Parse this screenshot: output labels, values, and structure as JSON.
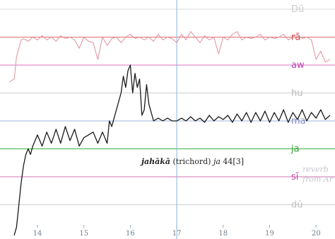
{
  "chart_data": {
    "type": "line",
    "x_ticks": [
      14,
      15,
      16,
      17,
      18,
      19,
      20
    ],
    "xlim": [
      13.4,
      20.3
    ],
    "svara_lines": [
      {
        "label": "Dū",
        "level": 2,
        "color": "#d9d9d9",
        "label_color": "#cccccc"
      },
      {
        "label": "rā",
        "level": 1,
        "color": "#e07070",
        "label_color": "#d04040"
      },
      {
        "label": "aw",
        "level": 0,
        "color": "#e070c0",
        "label_color": "#c040b0"
      },
      {
        "label": "hu",
        "level": -1,
        "color": "#cfcfcf",
        "label_color": "#b8b8b8"
      },
      {
        "label": "ma",
        "level": -2,
        "color": "#a0b0d8",
        "label_color": "#8090c8"
      },
      {
        "label": "ja",
        "level": -3,
        "color": "#40b040",
        "label_color": "#30a030"
      },
      {
        "label": "sī",
        "level": -4,
        "color": "#d070b0",
        "label_color": "#c040a0"
      },
      {
        "label": "dū",
        "level": -5,
        "color": "#d0d0d0",
        "label_color": "#c0c0c0"
      }
    ],
    "cursor_x": 17.0,
    "annotation": {
      "word": "jahākā",
      "middle": " (trichord) ",
      "word2": "ja",
      "suffix": " 44[3]"
    },
    "faint_text": [
      "reverb",
      "from Ar"
    ],
    "series": [
      {
        "color": "#e0909a",
        "x": [
          13.4,
          13.5,
          13.55,
          13.65,
          13.7,
          13.8,
          13.9,
          14.0,
          14.1,
          14.2,
          14.3,
          14.4,
          14.5,
          14.6,
          14.7,
          14.8,
          14.9,
          15.0,
          15.1,
          15.2,
          15.3,
          15.4,
          15.5,
          15.6,
          15.7,
          15.8,
          15.9,
          16.0,
          16.1,
          16.2,
          16.3,
          16.4,
          16.5,
          16.6,
          16.7,
          16.8,
          16.9,
          17.0,
          17.1,
          17.2,
          17.3,
          17.4,
          17.5,
          17.6,
          17.7,
          17.8,
          17.9,
          18.0,
          18.1,
          18.2,
          18.3,
          18.4,
          18.5,
          18.6,
          18.7,
          18.8,
          18.9,
          19.0,
          19.1,
          19.2,
          19.3,
          19.4,
          19.5,
          19.6,
          19.7,
          19.8,
          19.9,
          20.0,
          20.1,
          20.2,
          20.3
        ],
        "y": [
          -0.6,
          -0.5,
          0.3,
          0.9,
          0.95,
          0.85,
          1.0,
          0.9,
          1.05,
          0.9,
          1.0,
          0.85,
          1.05,
          0.95,
          1.0,
          0.9,
          0.6,
          1.0,
          0.85,
          0.8,
          0.2,
          1.0,
          0.7,
          0.95,
          1.0,
          0.8,
          1.0,
          1.1,
          0.95,
          1.0,
          0.9,
          1.0,
          0.85,
          1.1,
          0.9,
          1.0,
          0.95,
          0.8,
          1.1,
          0.9,
          1.2,
          1.0,
          0.8,
          1.05,
          0.9,
          1.0,
          0.4,
          1.0,
          0.9,
          1.1,
          1.2,
          0.9,
          1.0,
          0.95,
          1.0,
          1.1,
          0.9,
          1.0,
          0.95,
          1.0,
          1.1,
          0.9,
          1.0,
          1.1,
          0.95,
          1.0,
          0.9,
          0.2,
          0.5,
          0.1,
          0.2
        ]
      },
      {
        "color": "#1a1a1a",
        "x": [
          13.5,
          13.55,
          13.6,
          13.65,
          13.7,
          13.75,
          13.8,
          13.85,
          13.9,
          14.0,
          14.1,
          14.2,
          14.3,
          14.4,
          14.5,
          14.6,
          14.7,
          14.8,
          14.9,
          15.0,
          15.1,
          15.2,
          15.3,
          15.4,
          15.5,
          15.55,
          15.6,
          15.7,
          15.8,
          15.85,
          15.9,
          15.95,
          16.0,
          16.05,
          16.1,
          16.15,
          16.2,
          16.25,
          16.3,
          16.35,
          16.4,
          16.5,
          16.6,
          16.7,
          16.8,
          16.9,
          17.0,
          17.1,
          17.2,
          17.3,
          17.4,
          17.5,
          17.6,
          17.7,
          17.8,
          17.9,
          18.0,
          18.1,
          18.2,
          18.3,
          18.4,
          18.5,
          18.6,
          18.7,
          18.8,
          18.9,
          19.0,
          19.1,
          19.2,
          19.3,
          19.4,
          19.5,
          19.6,
          19.7,
          19.8,
          19.9,
          20.0,
          20.1,
          20.2,
          20.3
        ],
        "y": [
          -6.1,
          -5.8,
          -5.0,
          -4.2,
          -3.6,
          -3.2,
          -3.0,
          -3.2,
          -2.9,
          -2.5,
          -2.9,
          -2.4,
          -2.8,
          -2.3,
          -2.8,
          -2.2,
          -2.7,
          -2.3,
          -2.9,
          -2.6,
          -2.5,
          -2.4,
          -2.8,
          -2.4,
          -2.8,
          -2.0,
          -2.2,
          -1.6,
          -1.0,
          -0.4,
          -0.8,
          -0.2,
          0.0,
          -1.0,
          -0.3,
          -0.8,
          -0.5,
          -1.8,
          -1.6,
          -0.7,
          -1.4,
          -2.0,
          -1.9,
          -2.0,
          -1.9,
          -2.0,
          -2.0,
          -1.9,
          -2.0,
          -1.85,
          -2.0,
          -1.9,
          -2.05,
          -1.8,
          -2.0,
          -1.85,
          -1.95,
          -1.8,
          -2.05,
          -1.75,
          -2.0,
          -1.7,
          -2.05,
          -1.7,
          -2.0,
          -1.65,
          -2.05,
          -1.7,
          -2.0,
          -1.6,
          -2.05,
          -1.7,
          -1.95,
          -1.6,
          -2.0,
          -1.7,
          -1.9,
          -1.6,
          -1.95,
          -1.8
        ]
      }
    ]
  }
}
